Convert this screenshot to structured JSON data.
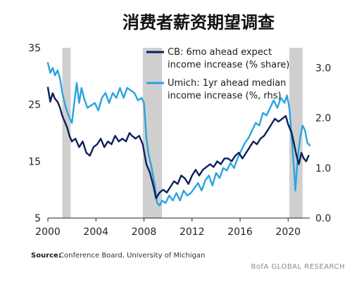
{
  "chart_data": {
    "type": "line",
    "title": "消费者薪资期望调查",
    "left_axis": {
      "ylim": [
        5,
        35
      ],
      "ticks": [
        "35",
        "25",
        "15",
        "5"
      ]
    },
    "right_axis": {
      "ylim": [
        0.0,
        3.4
      ],
      "ticks": [
        "3.0",
        "2.0",
        "1.0",
        "0.0"
      ]
    },
    "x_axis": {
      "xlim": [
        2000,
        2021.8
      ],
      "ticks": [
        "2000",
        "2004",
        "2008",
        "2012",
        "2016",
        "2020"
      ]
    },
    "grid": false,
    "legend_position": "top-right",
    "recessions": [
      [
        2001.2,
        2001.9
      ],
      [
        2007.9,
        2009.5
      ],
      [
        2020.1,
        2021.2
      ]
    ],
    "series": [
      {
        "name": "CB: 6mo ahead expect income increase (% share)",
        "axis": "left",
        "color": "#0d1f5c",
        "points": [
          [
            2000.0,
            28.0
          ],
          [
            2000.2,
            25.5
          ],
          [
            2000.4,
            27.0
          ],
          [
            2000.6,
            26.0
          ],
          [
            2000.8,
            25.5
          ],
          [
            2001.0,
            24.5
          ],
          [
            2001.2,
            23.0
          ],
          [
            2001.4,
            22.0
          ],
          [
            2001.6,
            21.0
          ],
          [
            2001.8,
            19.5
          ],
          [
            2002.0,
            18.5
          ],
          [
            2002.3,
            19.0
          ],
          [
            2002.6,
            17.5
          ],
          [
            2002.9,
            18.5
          ],
          [
            2003.2,
            16.5
          ],
          [
            2003.5,
            16.0
          ],
          [
            2003.8,
            17.5
          ],
          [
            2004.1,
            18.0
          ],
          [
            2004.4,
            19.0
          ],
          [
            2004.7,
            17.5
          ],
          [
            2005.0,
            18.5
          ],
          [
            2005.3,
            18.0
          ],
          [
            2005.6,
            19.5
          ],
          [
            2005.9,
            18.5
          ],
          [
            2006.2,
            19.0
          ],
          [
            2006.5,
            18.5
          ],
          [
            2006.8,
            20.0
          ],
          [
            2007.0,
            19.5
          ],
          [
            2007.3,
            19.0
          ],
          [
            2007.6,
            19.5
          ],
          [
            2007.9,
            18.0
          ],
          [
            2008.2,
            14.5
          ],
          [
            2008.5,
            13.0
          ],
          [
            2008.8,
            10.5
          ],
          [
            2009.0,
            8.5
          ],
          [
            2009.3,
            9.5
          ],
          [
            2009.6,
            10.0
          ],
          [
            2009.9,
            9.5
          ],
          [
            2010.2,
            10.5
          ],
          [
            2010.5,
            11.5
          ],
          [
            2010.8,
            11.0
          ],
          [
            2011.1,
            12.5
          ],
          [
            2011.4,
            12.0
          ],
          [
            2011.7,
            11.0
          ],
          [
            2012.0,
            12.5
          ],
          [
            2012.3,
            13.5
          ],
          [
            2012.6,
            12.5
          ],
          [
            2012.9,
            13.5
          ],
          [
            2013.2,
            14.0
          ],
          [
            2013.5,
            14.5
          ],
          [
            2013.8,
            14.0
          ],
          [
            2014.1,
            15.0
          ],
          [
            2014.4,
            14.5
          ],
          [
            2014.7,
            15.5
          ],
          [
            2015.0,
            15.5
          ],
          [
            2015.3,
            15.0
          ],
          [
            2015.6,
            16.0
          ],
          [
            2015.9,
            16.5
          ],
          [
            2016.2,
            15.5
          ],
          [
            2016.5,
            16.5
          ],
          [
            2016.8,
            17.5
          ],
          [
            2017.1,
            18.5
          ],
          [
            2017.4,
            18.0
          ],
          [
            2017.7,
            19.0
          ],
          [
            2018.0,
            19.5
          ],
          [
            2018.3,
            20.5
          ],
          [
            2018.6,
            21.5
          ],
          [
            2018.9,
            22.5
          ],
          [
            2019.2,
            22.0
          ],
          [
            2019.5,
            22.5
          ],
          [
            2019.8,
            23.0
          ],
          [
            2020.0,
            21.5
          ],
          [
            2020.3,
            20.0
          ],
          [
            2020.5,
            18.0
          ],
          [
            2020.7,
            16.0
          ],
          [
            2020.9,
            14.5
          ],
          [
            2021.1,
            16.5
          ],
          [
            2021.3,
            15.5
          ],
          [
            2021.5,
            15.0
          ],
          [
            2021.7,
            16.0
          ]
        ]
      },
      {
        "name": "Umich: 1yr ahead median income increase (%, rhs)",
        "axis": "right",
        "color": "#29a3e0",
        "points": [
          [
            2000.0,
            3.1
          ],
          [
            2000.2,
            2.9
          ],
          [
            2000.4,
            3.0
          ],
          [
            2000.6,
            2.85
          ],
          [
            2000.8,
            2.95
          ],
          [
            2001.0,
            2.8
          ],
          [
            2001.2,
            2.5
          ],
          [
            2001.5,
            2.2
          ],
          [
            2001.8,
            2.0
          ],
          [
            2002.0,
            1.9
          ],
          [
            2002.2,
            2.3
          ],
          [
            2002.4,
            2.7
          ],
          [
            2002.6,
            2.3
          ],
          [
            2002.8,
            2.6
          ],
          [
            2003.0,
            2.4
          ],
          [
            2003.3,
            2.2
          ],
          [
            2003.6,
            2.25
          ],
          [
            2003.9,
            2.3
          ],
          [
            2004.2,
            2.15
          ],
          [
            2004.5,
            2.4
          ],
          [
            2004.8,
            2.5
          ],
          [
            2005.1,
            2.3
          ],
          [
            2005.4,
            2.5
          ],
          [
            2005.7,
            2.4
          ],
          [
            2006.0,
            2.6
          ],
          [
            2006.3,
            2.4
          ],
          [
            2006.6,
            2.6
          ],
          [
            2006.9,
            2.55
          ],
          [
            2007.2,
            2.5
          ],
          [
            2007.5,
            2.35
          ],
          [
            2007.8,
            2.4
          ],
          [
            2008.0,
            2.3
          ],
          [
            2008.2,
            1.6
          ],
          [
            2008.4,
            1.25
          ],
          [
            2008.6,
            1.05
          ],
          [
            2008.9,
            0.65
          ],
          [
            2009.1,
            0.3
          ],
          [
            2009.3,
            0.25
          ],
          [
            2009.5,
            0.35
          ],
          [
            2009.8,
            0.3
          ],
          [
            2010.1,
            0.45
          ],
          [
            2010.4,
            0.35
          ],
          [
            2010.7,
            0.5
          ],
          [
            2011.0,
            0.35
          ],
          [
            2011.3,
            0.55
          ],
          [
            2011.6,
            0.45
          ],
          [
            2011.9,
            0.5
          ],
          [
            2012.2,
            0.6
          ],
          [
            2012.5,
            0.7
          ],
          [
            2012.8,
            0.55
          ],
          [
            2013.1,
            0.75
          ],
          [
            2013.4,
            0.85
          ],
          [
            2013.7,
            0.65
          ],
          [
            2014.0,
            0.9
          ],
          [
            2014.3,
            0.8
          ],
          [
            2014.6,
            1.0
          ],
          [
            2014.9,
            0.95
          ],
          [
            2015.2,
            1.1
          ],
          [
            2015.5,
            1.0
          ],
          [
            2015.8,
            1.2
          ],
          [
            2016.1,
            1.35
          ],
          [
            2016.4,
            1.5
          ],
          [
            2016.7,
            1.6
          ],
          [
            2017.0,
            1.75
          ],
          [
            2017.3,
            1.9
          ],
          [
            2017.6,
            1.85
          ],
          [
            2017.9,
            2.1
          ],
          [
            2018.2,
            2.05
          ],
          [
            2018.5,
            2.2
          ],
          [
            2018.8,
            2.35
          ],
          [
            2019.1,
            2.2
          ],
          [
            2019.4,
            2.4
          ],
          [
            2019.7,
            2.3
          ],
          [
            2019.9,
            2.45
          ],
          [
            2020.1,
            2.2
          ],
          [
            2020.3,
            1.6
          ],
          [
            2020.5,
            0.95
          ],
          [
            2020.6,
            0.55
          ],
          [
            2020.8,
            1.2
          ],
          [
            2021.0,
            1.6
          ],
          [
            2021.2,
            1.85
          ],
          [
            2021.4,
            1.75
          ],
          [
            2021.6,
            1.5
          ],
          [
            2021.8,
            1.45
          ]
        ]
      }
    ]
  },
  "legend": {
    "cb_line1": "CB: 6mo ahead expect",
    "cb_line2": "income increase (% share)",
    "um_line1": "Umich: 1yr ahead median",
    "um_line2": "income increase (%, rhs)"
  },
  "footer": {
    "source_label": "Source:",
    "source_text": "Conference Board, University of Michigan",
    "brand": "BofA GLOBAL RESEARCH"
  }
}
